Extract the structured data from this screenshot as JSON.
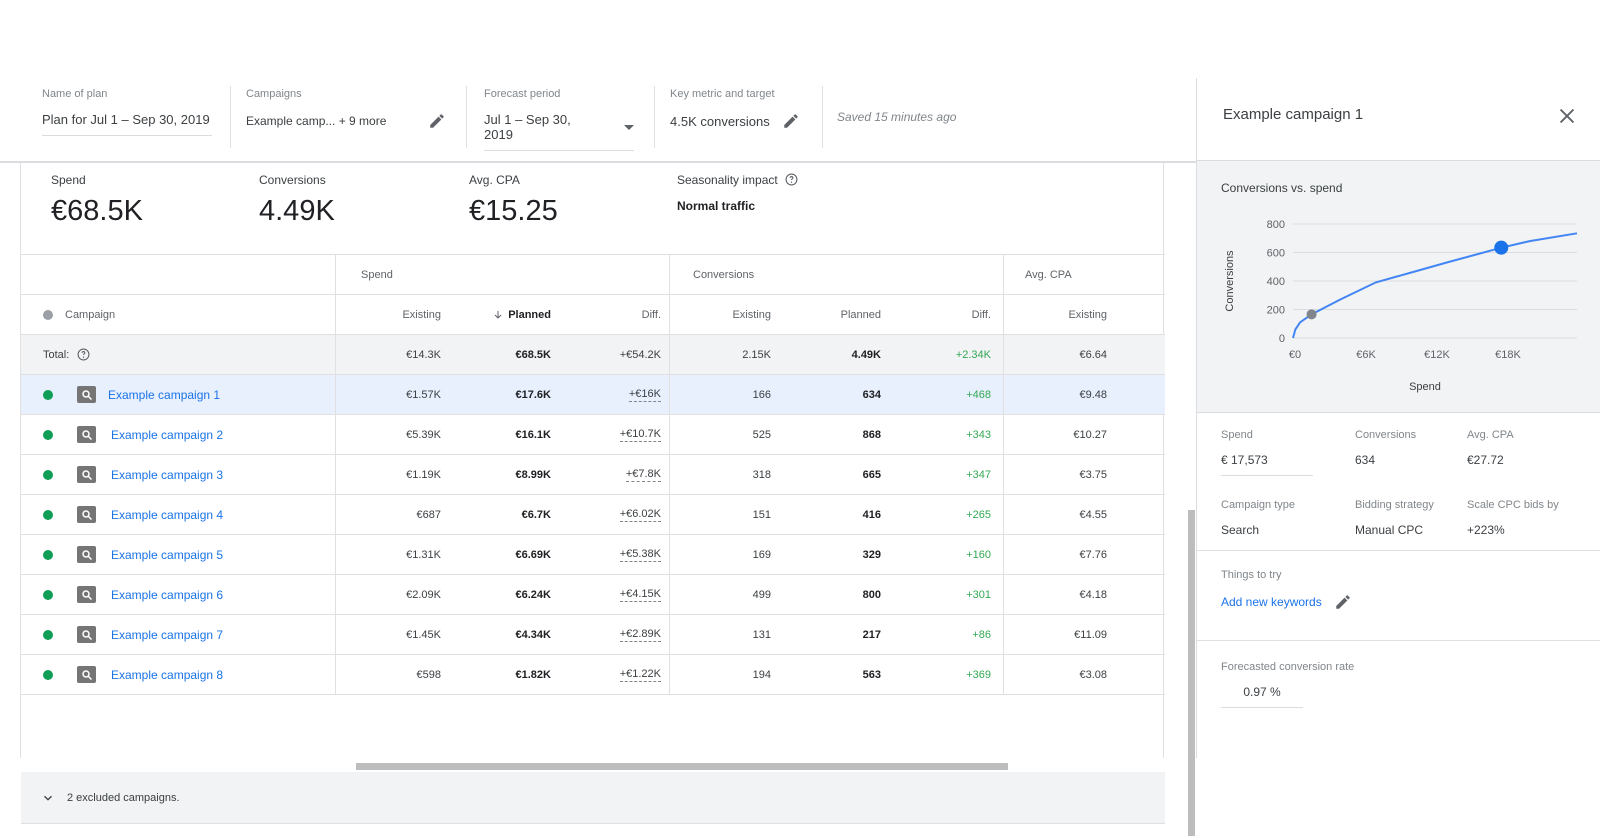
{
  "header": {
    "plan_name": {
      "label": "Name of plan",
      "value": "Plan for Jul 1 – Sep 30, 2019"
    },
    "campaigns": {
      "label": "Campaigns",
      "value": "Example camp... + 9 more"
    },
    "forecast_period": {
      "label": "Forecast period",
      "value": "Jul 1 – Sep 30, 2019"
    },
    "key_metric": {
      "label": "Key metric and target",
      "value": "4.5K conversions"
    },
    "saved_status": "Saved 15 minutes ago"
  },
  "summary": {
    "spend": {
      "label": "Spend",
      "value": "€68.5K"
    },
    "conversions": {
      "label": "Conversions",
      "value": "4.49K"
    },
    "avg_cpa": {
      "label": "Avg. CPA",
      "value": "€15.25"
    },
    "seasonality": {
      "label": "Seasonality impact",
      "value": "Normal traffic"
    }
  },
  "table": {
    "groups": {
      "spend": "Spend",
      "conversions": "Conversions",
      "avg_cpa": "Avg. CPA"
    },
    "columns": {
      "campaign": "Campaign",
      "spend_existing": "Existing",
      "spend_planned": "Planned",
      "spend_diff": "Diff.",
      "conv_existing": "Existing",
      "conv_planned": "Planned",
      "conv_diff": "Diff.",
      "cpa_existing": "Existing"
    },
    "total": {
      "label": "Total:",
      "spend_existing": "€14.3K",
      "spend_planned": "€68.5K",
      "spend_diff": "+€54.2K",
      "conv_existing": "2.15K",
      "conv_planned": "4.49K",
      "conv_diff": "+2.34K",
      "cpa_existing": "€6.64"
    },
    "rows": [
      {
        "name": "Example campaign 1",
        "spend_existing": "€1.57K",
        "spend_planned": "€17.6K",
        "spend_diff": "+€16K",
        "conv_existing": "166",
        "conv_planned": "634",
        "conv_diff": "+468",
        "cpa_existing": "€9.48"
      },
      {
        "name": "Example campaign 2",
        "spend_existing": "€5.39K",
        "spend_planned": "€16.1K",
        "spend_diff": "+€10.7K",
        "conv_existing": "525",
        "conv_planned": "868",
        "conv_diff": "+343",
        "cpa_existing": "€10.27"
      },
      {
        "name": "Example campaign 3",
        "spend_existing": "€1.19K",
        "spend_planned": "€8.99K",
        "spend_diff": "+€7.8K",
        "conv_existing": "318",
        "conv_planned": "665",
        "conv_diff": "+347",
        "cpa_existing": "€3.75"
      },
      {
        "name": "Example campaign 4",
        "spend_existing": "€687",
        "spend_planned": "€6.7K",
        "spend_diff": "+€6.02K",
        "conv_existing": "151",
        "conv_planned": "416",
        "conv_diff": "+265",
        "cpa_existing": "€4.55"
      },
      {
        "name": "Example campaign 5",
        "spend_existing": "€1.31K",
        "spend_planned": "€6.69K",
        "spend_diff": "+€5.38K",
        "conv_existing": "169",
        "conv_planned": "329",
        "conv_diff": "+160",
        "cpa_existing": "€7.76"
      },
      {
        "name": "Example campaign 6",
        "spend_existing": "€2.09K",
        "spend_planned": "€6.24K",
        "spend_diff": "+€4.15K",
        "conv_existing": "499",
        "conv_planned": "800",
        "conv_diff": "+301",
        "cpa_existing": "€4.18"
      },
      {
        "name": "Example campaign 7",
        "spend_existing": "€1.45K",
        "spend_planned": "€4.34K",
        "spend_diff": "+€2.89K",
        "conv_existing": "131",
        "conv_planned": "217",
        "conv_diff": "+86",
        "cpa_existing": "€11.09"
      },
      {
        "name": "Example campaign 8",
        "spend_existing": "€598",
        "spend_planned": "€1.82K",
        "spend_diff": "+€1.22K",
        "conv_existing": "194",
        "conv_planned": "563",
        "conv_diff": "+369",
        "cpa_existing": "€3.08"
      }
    ],
    "excluded_label": "2 excluded campaigns."
  },
  "panel": {
    "title": "Example campaign 1",
    "chart_title": "Conversions vs. spend",
    "chart_data": {
      "type": "line",
      "xlabel": "Spend",
      "ylabel": "Conversions",
      "x_ticks": [
        "€0",
        "€6K",
        "€12K",
        "€18K"
      ],
      "y_ticks": [
        "0",
        "200",
        "400",
        "600",
        "800"
      ],
      "xlim": [
        0,
        24000
      ],
      "ylim": [
        0,
        800
      ],
      "curve": [
        [
          0,
          0
        ],
        [
          200,
          60
        ],
        [
          600,
          110
        ],
        [
          1570,
          166
        ],
        [
          4000,
          270
        ],
        [
          7000,
          390
        ],
        [
          10000,
          460
        ],
        [
          13000,
          530
        ],
        [
          17600,
          634
        ],
        [
          20000,
          680
        ],
        [
          24000,
          735
        ]
      ],
      "existing_point": [
        1570,
        166
      ],
      "planned_point": [
        17600,
        634
      ],
      "colors": {
        "line": "#4285f4",
        "planned": "#1a73e8",
        "existing": "#80868b"
      }
    },
    "stats": {
      "spend": {
        "label": "Spend",
        "value": "€ 17,573"
      },
      "conversions": {
        "label": "Conversions",
        "value": "634"
      },
      "avg_cpa": {
        "label": "Avg. CPA",
        "value": "€27.72"
      },
      "campaign_type": {
        "label": "Campaign type",
        "value": "Search"
      },
      "bidding": {
        "label": "Bidding strategy",
        "value": "Manual CPC"
      },
      "scale_cpc": {
        "label": "Scale CPC bids by",
        "value": "+223%"
      }
    },
    "things_to_try": {
      "label": "Things to try",
      "link": "Add new keywords"
    },
    "forecast_rate": {
      "label": "Forecasted conversion rate",
      "value": "0.97 %"
    }
  },
  "icons": {
    "pencil": "pencil-icon",
    "dropdown": "arrow-drop-down-icon",
    "help": "help-circle-icon",
    "sort": "arrow-down-icon",
    "search": "search-icon",
    "close": "close-icon",
    "expand": "chevron-down-icon"
  },
  "colors": {
    "link": "#1a73e8",
    "positive": "#34a853",
    "status_active": "#0f9d58",
    "selected_row": "#e8f0fe"
  }
}
